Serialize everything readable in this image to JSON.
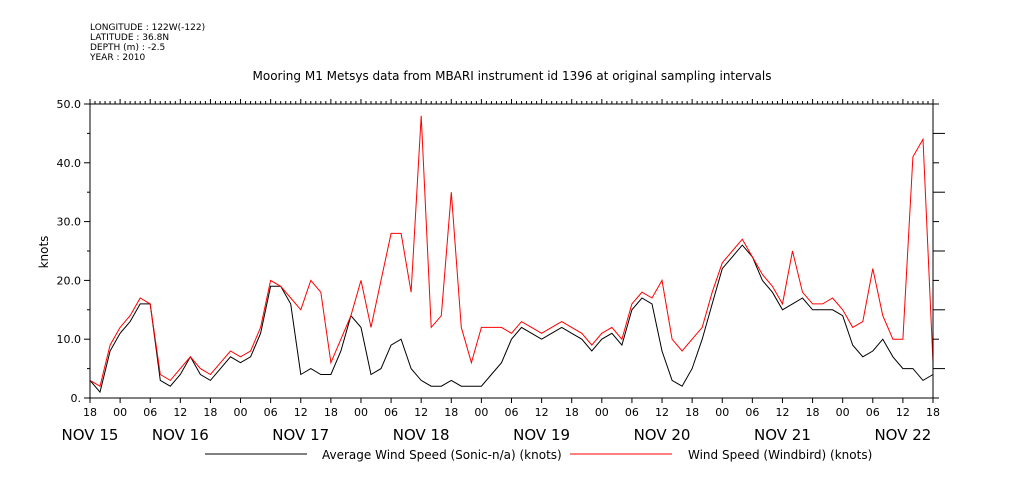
{
  "header": {
    "lines": [
      "LONGITUDE : 122W(-122)",
      "LATITUDE : 36.8N",
      "DEPTH (m) : -2.5",
      "YEAR : 2010"
    ]
  },
  "chart_data": {
    "type": "line",
    "title": "Mooring M1 Metsys data from MBARI instrument id 1396 at original sampling intervals",
    "xlabel": "",
    "ylabel": "knots",
    "xlim": [
      "2010-11-15T18:00",
      "2010-11-22T18:00"
    ],
    "ylim": [
      0,
      50
    ],
    "y_ticks": [
      0,
      10,
      20,
      30,
      40,
      50
    ],
    "y_tick_labels": [
      "0.",
      "10.0",
      "20.0",
      "30.0",
      "40.0",
      "50.0"
    ],
    "x_hour_ticks": [
      "18",
      "00",
      "06",
      "12",
      "18",
      "00",
      "06",
      "12",
      "18",
      "00",
      "06",
      "12",
      "18",
      "00",
      "06",
      "12",
      "18",
      "00",
      "06",
      "12",
      "18",
      "00",
      "06",
      "12",
      "18",
      "00",
      "06",
      "12",
      "18"
    ],
    "x_day_labels": [
      {
        "label": "NOV 15",
        "at": "2010-11-15T18:00"
      },
      {
        "label": "NOV 16",
        "at": "2010-11-16T12:00"
      },
      {
        "label": "NOV 17",
        "at": "2010-11-17T12:00"
      },
      {
        "label": "NOV 18",
        "at": "2010-11-18T12:00"
      },
      {
        "label": "NOV 19",
        "at": "2010-11-19T12:00"
      },
      {
        "label": "NOV 20",
        "at": "2010-11-20T12:00"
      },
      {
        "label": "NOV 21",
        "at": "2010-11-21T12:00"
      },
      {
        "label": "NOV 22",
        "at": "2010-11-22T12:00"
      }
    ],
    "grid": false,
    "legend_position": "bottom",
    "series": [
      {
        "name": "Average Wind Speed (Sonic-n/a) (knots)",
        "color": "#000000",
        "x": [
          "2010-11-15T18:00",
          "2010-11-15T20:00",
          "2010-11-15T22:00",
          "2010-11-16T00:00",
          "2010-11-16T02:00",
          "2010-11-16T04:00",
          "2010-11-16T06:00",
          "2010-11-16T08:00",
          "2010-11-16T10:00",
          "2010-11-16T12:00",
          "2010-11-16T14:00",
          "2010-11-16T16:00",
          "2010-11-16T18:00",
          "2010-11-16T20:00",
          "2010-11-16T22:00",
          "2010-11-17T00:00",
          "2010-11-17T02:00",
          "2010-11-17T04:00",
          "2010-11-17T06:00",
          "2010-11-17T08:00",
          "2010-11-17T10:00",
          "2010-11-17T12:00",
          "2010-11-17T14:00",
          "2010-11-17T16:00",
          "2010-11-17T18:00",
          "2010-11-17T20:00",
          "2010-11-17T22:00",
          "2010-11-18T00:00",
          "2010-11-18T02:00",
          "2010-11-18T04:00",
          "2010-11-18T06:00",
          "2010-11-18T08:00",
          "2010-11-18T10:00",
          "2010-11-18T12:00",
          "2010-11-18T14:00",
          "2010-11-18T16:00",
          "2010-11-18T18:00",
          "2010-11-18T20:00",
          "2010-11-18T22:00",
          "2010-11-19T00:00",
          "2010-11-19T02:00",
          "2010-11-19T04:00",
          "2010-11-19T06:00",
          "2010-11-19T08:00",
          "2010-11-19T10:00",
          "2010-11-19T12:00",
          "2010-11-19T14:00",
          "2010-11-19T16:00",
          "2010-11-19T18:00",
          "2010-11-19T20:00",
          "2010-11-19T22:00",
          "2010-11-20T00:00",
          "2010-11-20T02:00",
          "2010-11-20T04:00",
          "2010-11-20T06:00",
          "2010-11-20T08:00",
          "2010-11-20T10:00",
          "2010-11-20T12:00",
          "2010-11-20T14:00",
          "2010-11-20T16:00",
          "2010-11-20T18:00",
          "2010-11-20T20:00",
          "2010-11-20T22:00",
          "2010-11-21T00:00",
          "2010-11-21T02:00",
          "2010-11-21T04:00",
          "2010-11-21T06:00",
          "2010-11-21T08:00",
          "2010-11-21T10:00",
          "2010-11-21T12:00",
          "2010-11-21T14:00",
          "2010-11-21T16:00",
          "2010-11-21T18:00",
          "2010-11-21T20:00",
          "2010-11-21T22:00",
          "2010-11-22T00:00",
          "2010-11-22T02:00",
          "2010-11-22T04:00",
          "2010-11-22T06:00",
          "2010-11-22T08:00",
          "2010-11-22T10:00",
          "2010-11-22T12:00",
          "2010-11-22T14:00",
          "2010-11-22T16:00",
          "2010-11-22T18:00"
        ],
        "y": [
          3,
          1,
          8,
          11,
          13,
          16,
          16,
          3,
          2,
          4,
          7,
          4,
          3,
          5,
          7,
          6,
          7,
          11,
          19,
          19,
          16,
          4,
          5,
          4,
          4,
          8,
          14,
          12,
          4,
          5,
          9,
          10,
          5,
          3,
          2,
          2,
          3,
          2,
          2,
          2,
          4,
          6,
          10,
          12,
          11,
          10,
          11,
          12,
          11,
          10,
          8,
          10,
          11,
          9,
          15,
          17,
          16,
          8,
          3,
          2,
          5,
          10,
          16,
          22,
          24,
          26,
          24,
          20,
          18,
          15,
          16,
          17,
          15,
          15,
          15,
          14,
          9,
          7,
          8,
          10,
          7,
          5,
          5,
          3,
          4
        ]
      },
      {
        "name": "Wind Speed (Windbird) (knots)",
        "color": "#ff0000",
        "x": [
          "2010-11-15T18:00",
          "2010-11-15T20:00",
          "2010-11-15T22:00",
          "2010-11-16T00:00",
          "2010-11-16T02:00",
          "2010-11-16T04:00",
          "2010-11-16T06:00",
          "2010-11-16T08:00",
          "2010-11-16T10:00",
          "2010-11-16T12:00",
          "2010-11-16T14:00",
          "2010-11-16T16:00",
          "2010-11-16T18:00",
          "2010-11-16T20:00",
          "2010-11-16T22:00",
          "2010-11-17T00:00",
          "2010-11-17T02:00",
          "2010-11-17T04:00",
          "2010-11-17T06:00",
          "2010-11-17T08:00",
          "2010-11-17T10:00",
          "2010-11-17T12:00",
          "2010-11-17T14:00",
          "2010-11-17T16:00",
          "2010-11-17T18:00",
          "2010-11-17T20:00",
          "2010-11-17T22:00",
          "2010-11-18T00:00",
          "2010-11-18T02:00",
          "2010-11-18T04:00",
          "2010-11-18T06:00",
          "2010-11-18T08:00",
          "2010-11-18T10:00",
          "2010-11-18T12:00",
          "2010-11-18T14:00",
          "2010-11-18T16:00",
          "2010-11-18T18:00",
          "2010-11-18T20:00",
          "2010-11-18T22:00",
          "2010-11-19T00:00",
          "2010-11-19T02:00",
          "2010-11-19T04:00",
          "2010-11-19T06:00",
          "2010-11-19T08:00",
          "2010-11-19T10:00",
          "2010-11-19T12:00",
          "2010-11-19T14:00",
          "2010-11-19T16:00",
          "2010-11-19T18:00",
          "2010-11-19T20:00",
          "2010-11-19T22:00",
          "2010-11-20T00:00",
          "2010-11-20T02:00",
          "2010-11-20T04:00",
          "2010-11-20T06:00",
          "2010-11-20T08:00",
          "2010-11-20T10:00",
          "2010-11-20T12:00",
          "2010-11-20T14:00",
          "2010-11-20T16:00",
          "2010-11-20T18:00",
          "2010-11-20T20:00",
          "2010-11-20T22:00",
          "2010-11-21T00:00",
          "2010-11-21T02:00",
          "2010-11-21T04:00",
          "2010-11-21T06:00",
          "2010-11-21T08:00",
          "2010-11-21T10:00",
          "2010-11-21T12:00",
          "2010-11-21T14:00",
          "2010-11-21T16:00",
          "2010-11-21T18:00",
          "2010-11-21T20:00",
          "2010-11-21T22:00",
          "2010-11-22T00:00",
          "2010-11-22T02:00",
          "2010-11-22T04:00",
          "2010-11-22T06:00",
          "2010-11-22T08:00",
          "2010-11-22T10:00",
          "2010-11-22T12:00",
          "2010-11-22T14:00",
          "2010-11-22T16:00",
          "2010-11-22T18:00"
        ],
        "y": [
          3,
          2,
          9,
          12,
          14,
          17,
          16,
          4,
          3,
          5,
          7,
          5,
          4,
          6,
          8,
          7,
          8,
          12,
          20,
          19,
          17,
          15,
          20,
          18,
          6,
          10,
          14,
          20,
          12,
          20,
          28,
          28,
          18,
          48,
          12,
          14,
          35,
          12,
          6,
          12,
          12,
          12,
          11,
          13,
          12,
          11,
          12,
          13,
          12,
          11,
          9,
          11,
          12,
          10,
          16,
          18,
          17,
          20,
          10,
          8,
          10,
          12,
          18,
          23,
          25,
          27,
          24,
          21,
          19,
          16,
          25,
          18,
          16,
          16,
          17,
          15,
          12,
          13,
          22,
          14,
          10,
          10,
          41,
          44,
          6
        ]
      }
    ]
  }
}
